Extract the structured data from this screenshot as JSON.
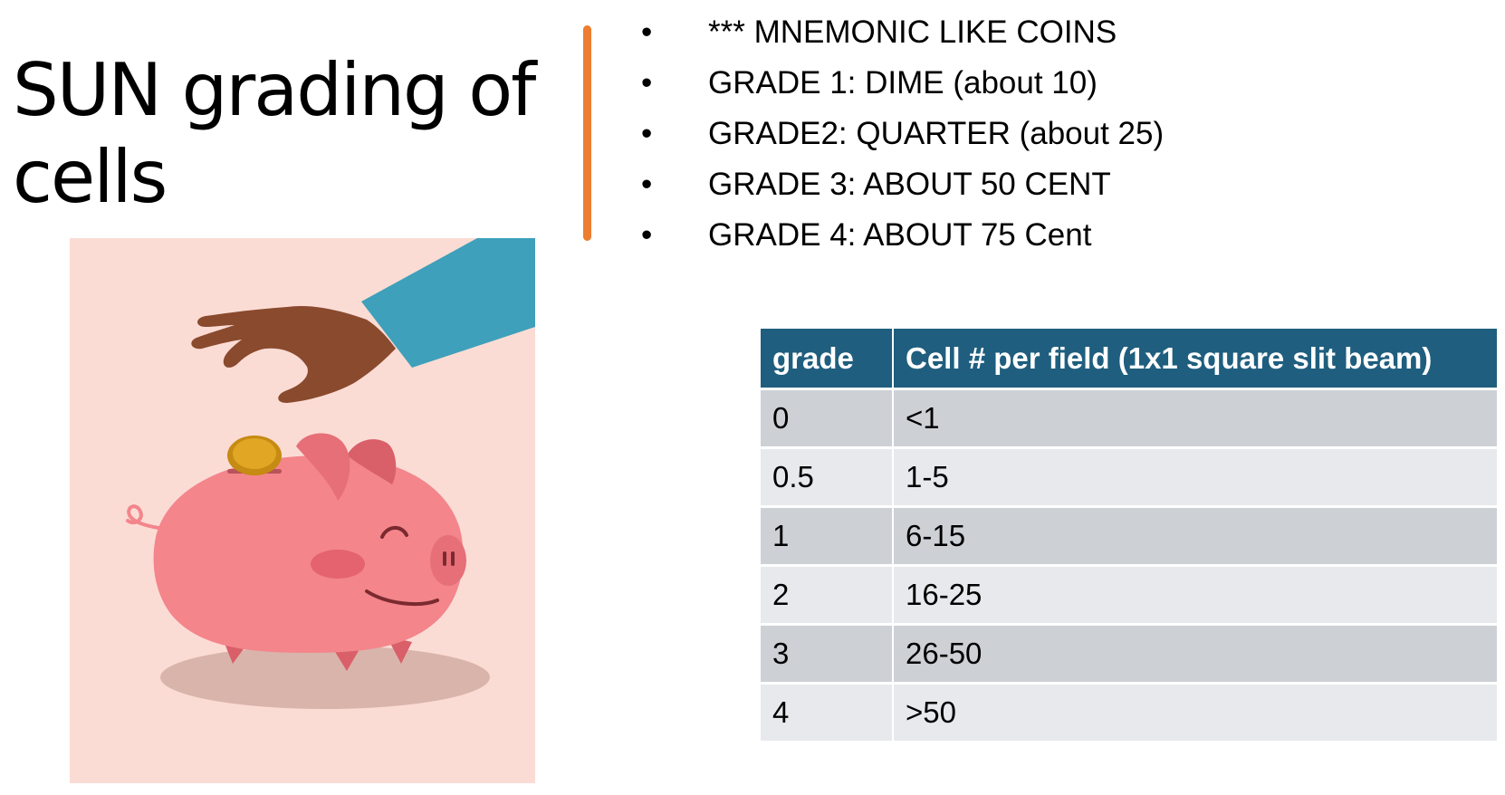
{
  "title": "SUN grading of cells",
  "bullets": [
    "*** MNEMONIC LIKE COINS",
    "GRADE 1: DIME (about 10)",
    "GRADE2: QUARTER (about 25)",
    "GRADE 3: ABOUT 50 CENT",
    "GRADE 4: ABOUT 75 Cent"
  ],
  "bullet_symbol": "•",
  "table": {
    "headers": [
      "grade",
      "Cell # per field (1x1 square slit beam)"
    ],
    "rows": [
      [
        "0",
        "<1"
      ],
      [
        "0.5",
        "1-5"
      ],
      [
        "1",
        "6-15"
      ],
      [
        "2",
        "16-25"
      ],
      [
        "3",
        "26-50"
      ],
      [
        "4",
        ">50"
      ]
    ]
  },
  "colors": {
    "accent_bar": "#ED7D31",
    "table_header_bg": "#1F5E7E",
    "row_dark": "#CDD1D6",
    "row_light": "#E7E9EC",
    "picture_bg": "#FBDCD5",
    "pig": "#F3858B",
    "sleeve": "#3EA0BA",
    "hand": "#8A4A2E",
    "coin": "#E0A624"
  },
  "picture": {
    "icon": "piggy-bank-coin-illustration"
  }
}
